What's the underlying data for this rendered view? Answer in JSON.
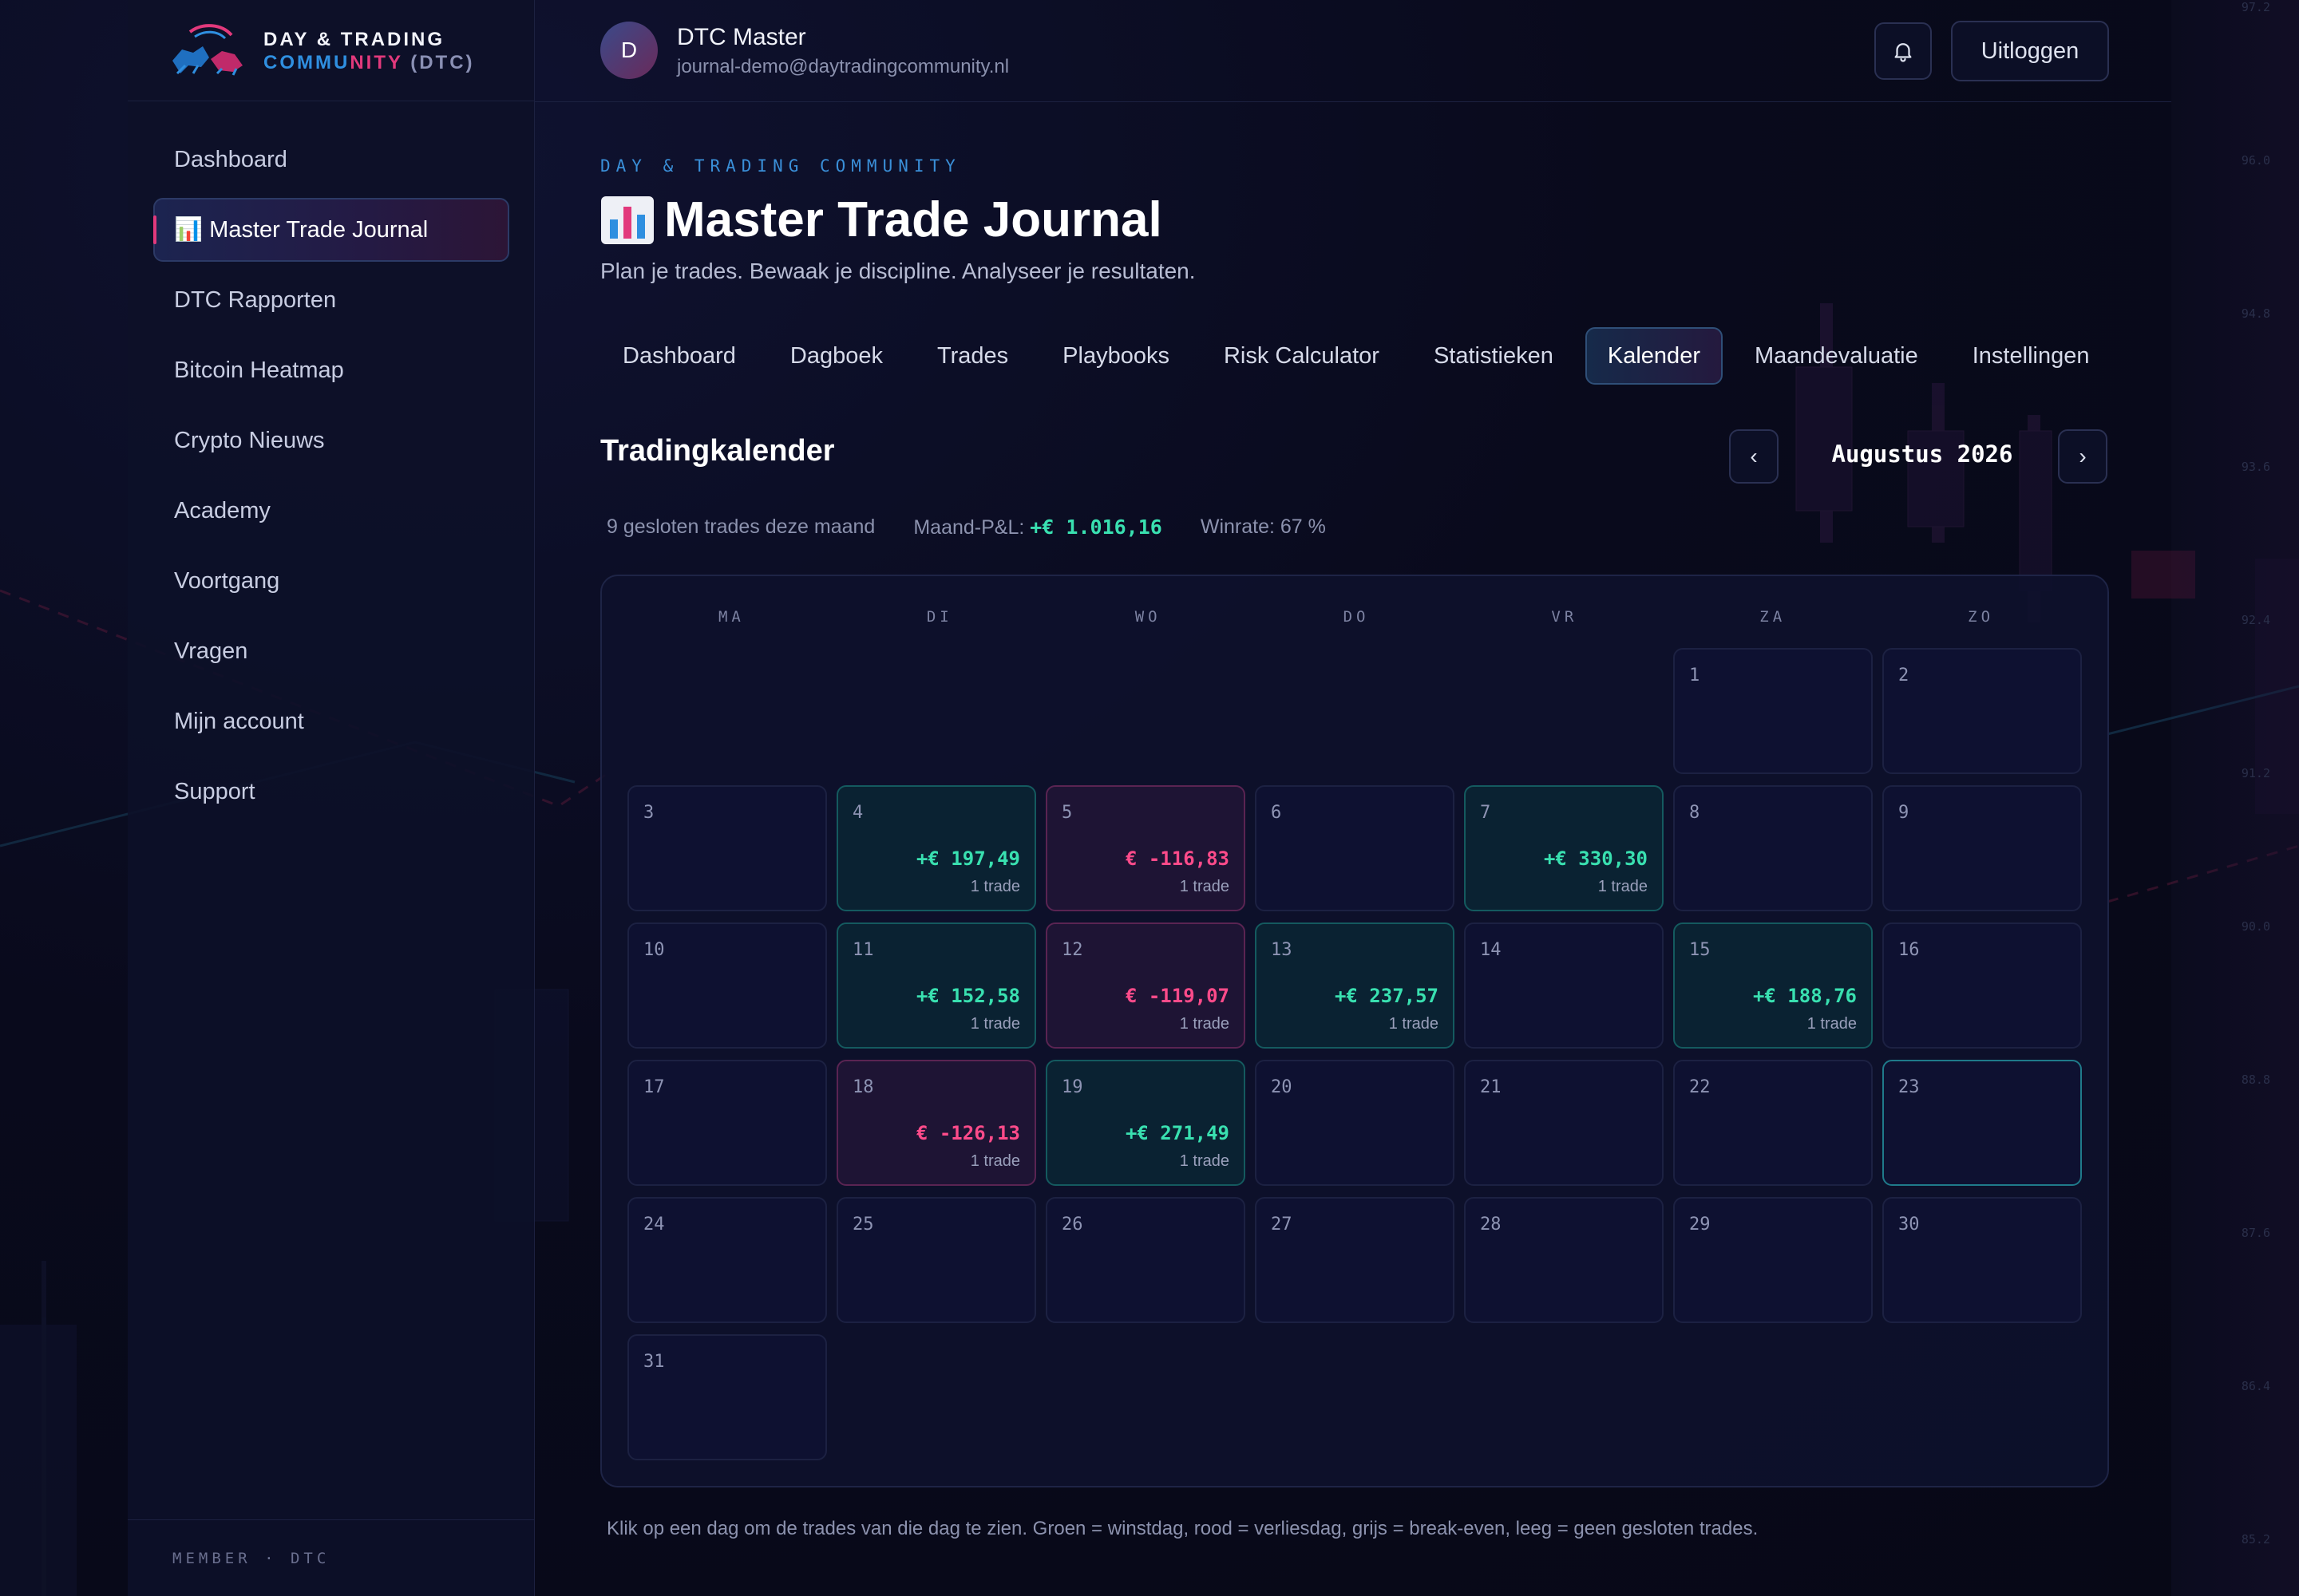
{
  "brand": {
    "line1": "DAY & TRADING",
    "line2_a": "COMMU",
    "line2_b": "NITY",
    "line2_c": " (DTC)"
  },
  "sidebar": {
    "items": [
      {
        "label": "Dashboard",
        "active": false
      },
      {
        "label": "📊 Master Trade Journal",
        "active": true
      },
      {
        "label": "DTC Rapporten",
        "active": false
      },
      {
        "label": "Bitcoin Heatmap",
        "active": false
      },
      {
        "label": "Crypto Nieuws",
        "active": false
      },
      {
        "label": "Academy",
        "active": false
      },
      {
        "label": "Voortgang",
        "active": false
      },
      {
        "label": "Vragen",
        "active": false
      },
      {
        "label": "Mijn account",
        "active": false
      },
      {
        "label": "Support",
        "active": false
      }
    ],
    "member_label": "MEMBER · DTC"
  },
  "user": {
    "initial": "D",
    "name": "DTC Master",
    "email": "journal-demo@daytradingcommunity.nl"
  },
  "topbar": {
    "bell_icon": "bell-icon",
    "logout_label": "Uitloggen"
  },
  "header": {
    "eyebrow": "DAY & TRADING COMMUNITY",
    "title": "Master Trade Journal",
    "subtitle": "Plan je trades. Bewaak je discipline. Analyseer je resultaten."
  },
  "tabs": [
    {
      "label": "Dashboard",
      "active": false
    },
    {
      "label": "Dagboek",
      "active": false
    },
    {
      "label": "Trades",
      "active": false
    },
    {
      "label": "Playbooks",
      "active": false
    },
    {
      "label": "Risk Calculator",
      "active": false
    },
    {
      "label": "Statistieken",
      "active": false
    },
    {
      "label": "Kalender",
      "active": true
    },
    {
      "label": "Maandevaluatie",
      "active": false
    },
    {
      "label": "Instellingen",
      "active": false
    }
  ],
  "calendar": {
    "title": "Tradingkalender",
    "month_label": "Augustus 2026",
    "prev_label": "‹",
    "next_label": "›",
    "stats": {
      "closed_trades": "9 gesloten trades deze maand",
      "pnl_label": "Maand-P&L: ",
      "pnl_value": "+€ 1.016,16",
      "winrate": "Winrate: 67 %"
    },
    "weekdays": [
      "MA",
      "DI",
      "WO",
      "DO",
      "VR",
      "ZA",
      "ZO"
    ],
    "leading_blanks": 5,
    "days": [
      {
        "day": "1"
      },
      {
        "day": "2"
      },
      {
        "day": "3"
      },
      {
        "day": "4",
        "status": "win",
        "pnl": "+€ 197,49",
        "trades": "1 trade"
      },
      {
        "day": "5",
        "status": "loss",
        "pnl": "€ -116,83",
        "trades": "1 trade"
      },
      {
        "day": "6"
      },
      {
        "day": "7",
        "status": "win",
        "pnl": "+€ 330,30",
        "trades": "1 trade"
      },
      {
        "day": "8"
      },
      {
        "day": "9"
      },
      {
        "day": "10"
      },
      {
        "day": "11",
        "status": "win",
        "pnl": "+€ 152,58",
        "trades": "1 trade"
      },
      {
        "day": "12",
        "status": "loss",
        "pnl": "€ -119,07",
        "trades": "1 trade"
      },
      {
        "day": "13",
        "status": "win",
        "pnl": "+€ 237,57",
        "trades": "1 trade"
      },
      {
        "day": "14"
      },
      {
        "day": "15",
        "status": "win",
        "pnl": "+€ 188,76",
        "trades": "1 trade"
      },
      {
        "day": "16"
      },
      {
        "day": "17"
      },
      {
        "day": "18",
        "status": "loss",
        "pnl": "€ -126,13",
        "trades": "1 trade"
      },
      {
        "day": "19",
        "status": "win",
        "pnl": "+€ 271,49",
        "trades": "1 trade"
      },
      {
        "day": "20"
      },
      {
        "day": "21"
      },
      {
        "day": "22"
      },
      {
        "day": "23",
        "today": true
      },
      {
        "day": "24"
      },
      {
        "day": "25"
      },
      {
        "day": "26"
      },
      {
        "day": "27"
      },
      {
        "day": "28"
      },
      {
        "day": "29"
      },
      {
        "day": "30"
      },
      {
        "day": "31"
      }
    ],
    "footnote": "Klik op een dag om de trades van die dag te zien. Groen = winstdag, rood = verliesdag, grijs = break-even, leeg = geen gesloten trades."
  },
  "price_scale": [
    "97.2",
    "96.0",
    "94.8",
    "93.6",
    "92.4",
    "91.2",
    "90.0",
    "88.8",
    "87.6",
    "86.4",
    "85.2"
  ],
  "colors": {
    "win": "#39e0b0",
    "loss": "#ff4b8a",
    "accent_blue": "#2f8fe0",
    "accent_pink": "#e2397c"
  }
}
